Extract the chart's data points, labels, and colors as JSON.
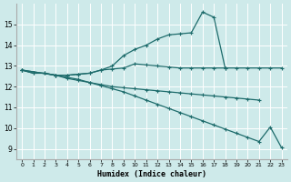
{
  "xlabel": "Humidex (Indice chaleur)",
  "xlim": [
    -0.5,
    23.5
  ],
  "ylim": [
    8.5,
    16.0
  ],
  "bg_color": "#ceeaea",
  "line_color": "#1d6b6b",
  "grid_color": "#b8d8d8",
  "curve_peak_x": [
    0,
    1,
    2,
    3,
    4,
    5,
    6,
    7,
    8,
    9,
    10,
    11,
    12,
    13,
    14,
    15,
    16,
    17,
    18,
    19,
    20,
    21,
    22,
    23
  ],
  "curve_peak_y": [
    12.8,
    12.65,
    12.65,
    12.55,
    12.55,
    12.6,
    12.65,
    12.8,
    13.0,
    13.5,
    13.8,
    14.0,
    14.3,
    14.5,
    14.55,
    14.6,
    15.6,
    15.35,
    12.9,
    12.9,
    12.9,
    12.9,
    12.9,
    12.9
  ],
  "curve_upper_x": [
    0,
    1,
    2,
    3,
    4,
    5,
    6,
    7,
    8,
    9,
    10,
    11,
    12,
    13,
    14,
    15,
    16,
    17,
    18
  ],
  "curve_upper_y": [
    12.8,
    12.65,
    12.65,
    12.55,
    12.55,
    12.6,
    12.65,
    12.8,
    12.85,
    12.9,
    13.1,
    13.05,
    13.0,
    12.95,
    12.9,
    12.9,
    12.9,
    12.9,
    12.9
  ],
  "curve_mid_x": [
    0,
    3,
    4,
    5,
    6,
    7,
    8,
    9,
    10,
    11,
    12,
    13,
    14,
    15,
    16,
    17,
    18,
    19,
    20,
    21
  ],
  "curve_mid_y": [
    12.8,
    12.55,
    12.4,
    12.3,
    12.2,
    12.1,
    12.0,
    11.95,
    11.9,
    11.85,
    11.8,
    11.75,
    11.7,
    11.65,
    11.6,
    11.55,
    11.5,
    11.45,
    11.4,
    11.35
  ],
  "curve_low_x": [
    0,
    3,
    4,
    5,
    6,
    7,
    8,
    9,
    10,
    11,
    12,
    13,
    14,
    15,
    16,
    17,
    18,
    19,
    20,
    21,
    22,
    23
  ],
  "curve_low_y": [
    12.8,
    12.55,
    12.45,
    12.35,
    12.2,
    12.05,
    11.9,
    11.75,
    11.55,
    11.35,
    11.15,
    10.95,
    10.75,
    10.55,
    10.35,
    10.15,
    9.95,
    9.75,
    9.55,
    9.35,
    10.05,
    9.05
  ],
  "yticks": [
    9,
    10,
    11,
    12,
    13,
    14,
    15
  ],
  "xticks": [
    0,
    1,
    2,
    3,
    4,
    5,
    6,
    7,
    8,
    9,
    10,
    11,
    12,
    13,
    14,
    15,
    16,
    17,
    18,
    19,
    20,
    21,
    22,
    23
  ]
}
